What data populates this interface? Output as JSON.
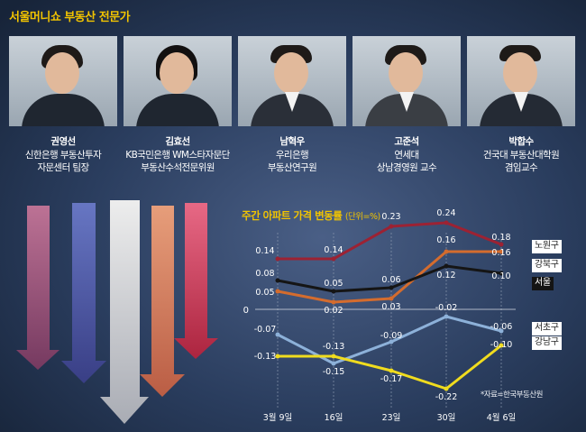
{
  "header": {
    "title": "서울머니쇼 부동산 전문가"
  },
  "experts": [
    {
      "name": "권영선",
      "lines": [
        "신한은행 부동산투자",
        "자문센터 팀장"
      ]
    },
    {
      "name": "김효선",
      "lines": [
        "KB국민은행 WM스타자문단",
        "부동산수석전문위원"
      ]
    },
    {
      "name": "남혁우",
      "lines": [
        "우리은행",
        "부동산연구원"
      ]
    },
    {
      "name": "고준석",
      "lines": [
        "연세대",
        "상남경영원 교수"
      ]
    },
    {
      "name": "박합수",
      "lines": [
        "건국대 부동산대학원",
        "겸임교수"
      ]
    }
  ],
  "chart_data": {
    "type": "line",
    "title": "주간 아파트 가격 변동률",
    "unit_note": "(단위=%)",
    "source": "*자료=한국부동산원",
    "categories": [
      "3월 9일",
      "16일",
      "23일",
      "30일",
      "4월 6일"
    ],
    "zero_label": "0",
    "ylim": [
      -0.25,
      0.27
    ],
    "series": [
      {
        "name": "노원구",
        "color": "#9c2233",
        "values": [
          0.14,
          0.14,
          0.23,
          0.24,
          0.18
        ],
        "labels": [
          "0.14",
          "0.14",
          "0.23",
          "0.24",
          "0.18"
        ]
      },
      {
        "name": "강북구",
        "color": "#d46c2e",
        "values": [
          0.05,
          0.02,
          0.03,
          0.16,
          0.16
        ],
        "labels": [
          "0.05",
          "0.02",
          "0.03",
          "0.16",
          "0.16"
        ]
      },
      {
        "name": "서울",
        "color": "#151515",
        "values": [
          0.08,
          0.05,
          0.06,
          0.12,
          0.1
        ],
        "labels": [
          "0.08",
          "0.05",
          "0.06",
          "0.12",
          "0.10"
        ]
      },
      {
        "name": "서초구",
        "color": "#8db1d9",
        "values": [
          -0.07,
          -0.15,
          -0.09,
          -0.02,
          -0.06
        ],
        "labels": [
          "-0.07",
          "-0.15",
          "-0.09",
          "-0.02",
          "-0.06"
        ]
      },
      {
        "name": "강남구",
        "color": "#f0dc1e",
        "values": [
          -0.13,
          -0.13,
          -0.17,
          -0.22,
          -0.1
        ],
        "labels": [
          "-0.13",
          "-0.13",
          "-0.17",
          "-0.22",
          "-0.10"
        ]
      }
    ]
  }
}
